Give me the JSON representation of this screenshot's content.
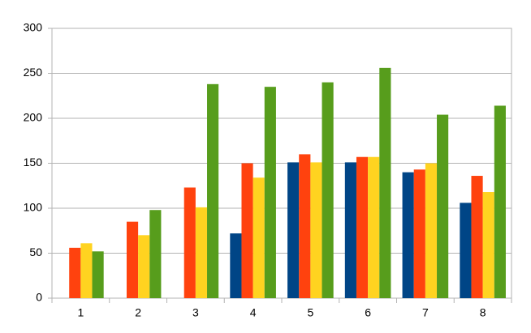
{
  "chart_data": {
    "type": "bar",
    "categories": [
      "1",
      "2",
      "3",
      "4",
      "5",
      "6",
      "7",
      "8"
    ],
    "series": [
      {
        "color": "#004586",
        "values": [
          null,
          null,
          null,
          72,
          151,
          151,
          140,
          106
        ]
      },
      {
        "color": "#ff420e",
        "values": [
          56,
          85,
          123,
          150,
          160,
          157,
          143,
          136
        ]
      },
      {
        "color": "#ffd320",
        "values": [
          61,
          70,
          101,
          134,
          151,
          157,
          150,
          118
        ]
      },
      {
        "color": "#579d1c",
        "values": [
          52,
          98,
          238,
          235,
          240,
          256,
          204,
          214
        ]
      }
    ],
    "ylim": [
      0,
      300
    ],
    "yticks": [
      0,
      50,
      100,
      150,
      200,
      250,
      300
    ],
    "grid": true
  }
}
